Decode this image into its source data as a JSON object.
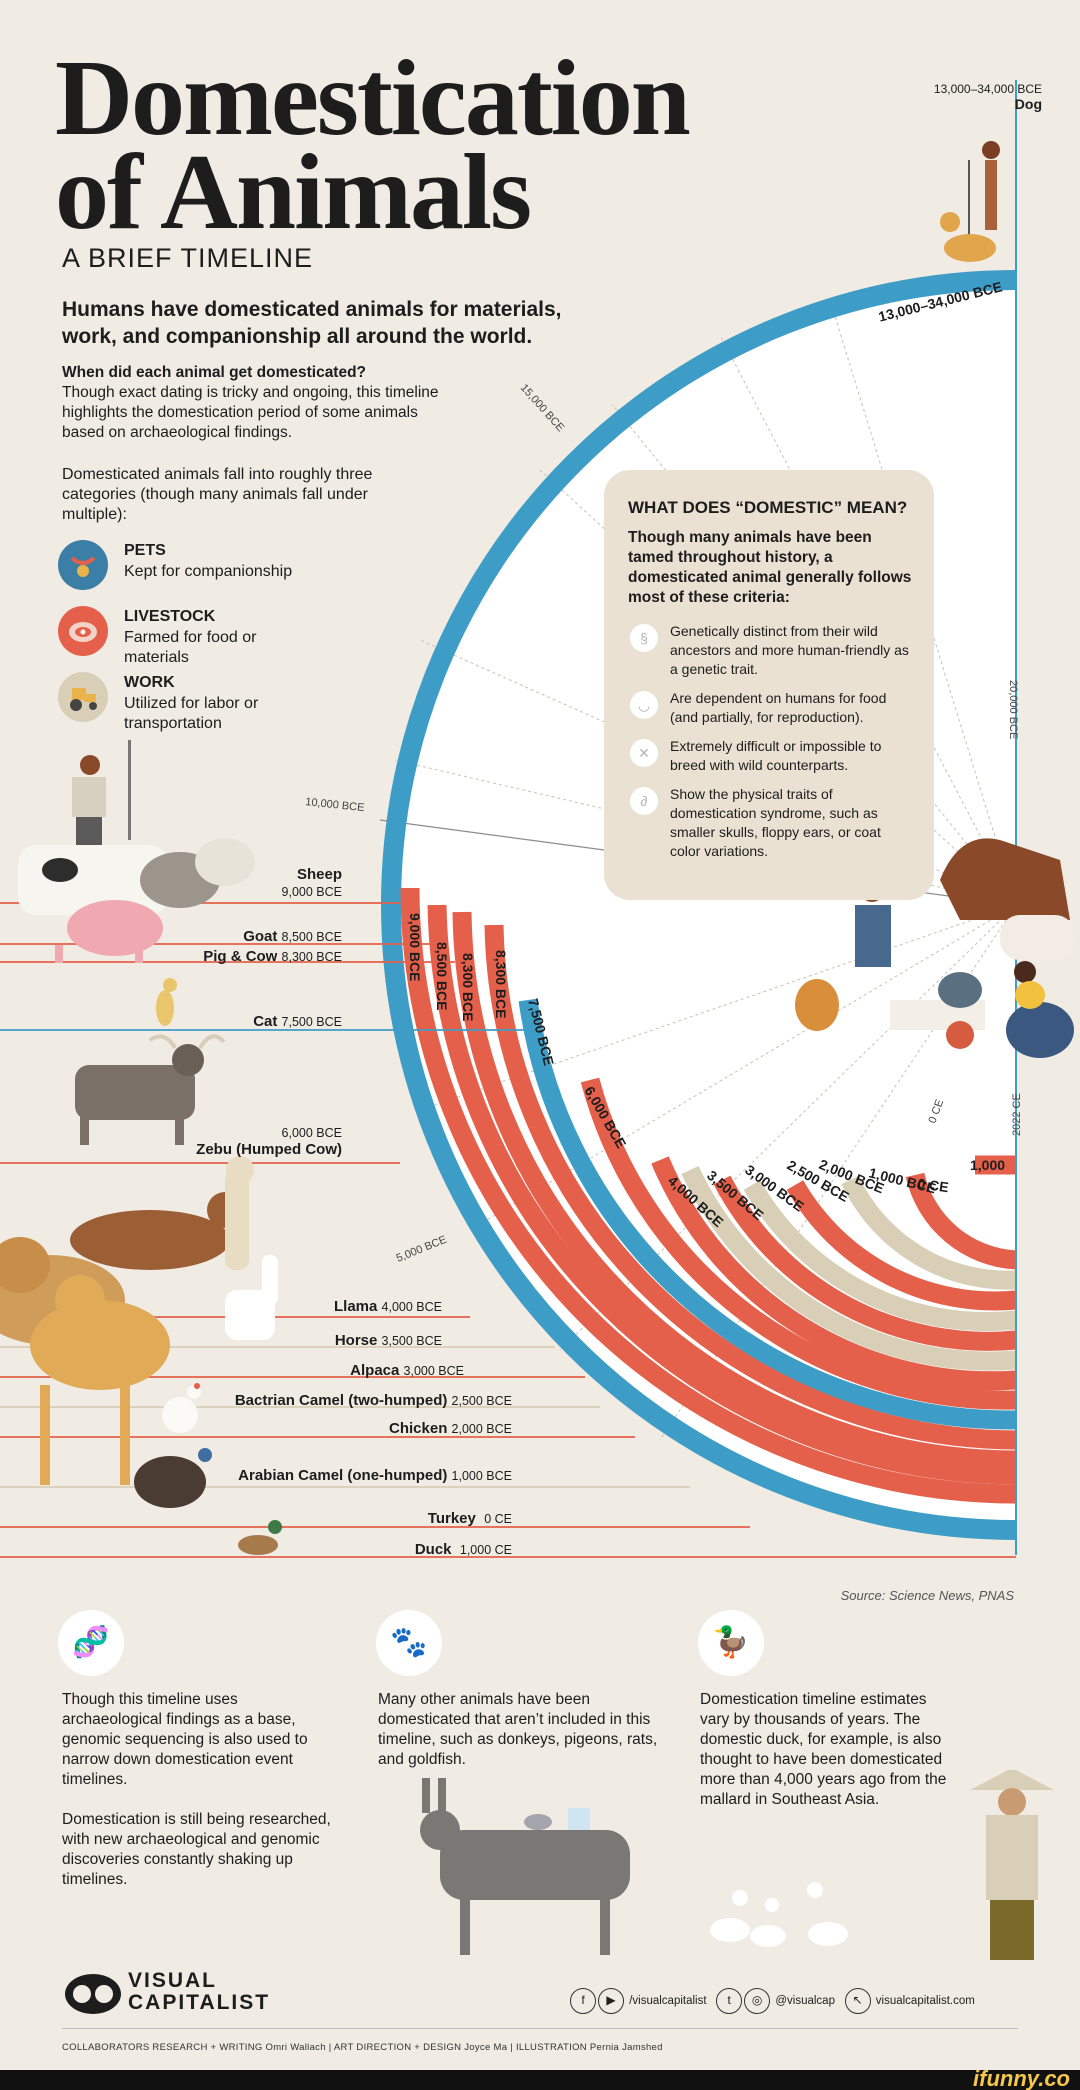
{
  "title_line1": "Domestication",
  "title_line2": "of Animals",
  "subtitle": "A BRIEF TIMELINE",
  "lead": "Humans have domesticated animals for materials, work, and companionship all around the world.",
  "question": "When did each animal get domesticated?",
  "question_body": "Though exact dating is tricky and ongoing, this timeline highlights the domestication period of some animals based on archaeological findings.",
  "categories_intro": "Domesticated animals fall into roughly three categories (though many animals fall under multiple):",
  "categories": [
    {
      "name": "PETS",
      "desc": "Kept for companionship",
      "color": "#3b7fa6"
    },
    {
      "name": "LIVESTOCK",
      "desc": "Farmed for food or materials",
      "color": "#e4604a"
    },
    {
      "name": "WORK",
      "desc": "Utilized for labor or transportation",
      "color": "#d9cfb6"
    }
  ],
  "dog": {
    "date": "13,000–34,000 BCE",
    "name": "Dog",
    "arc_label": "13,000–34,000 BCE"
  },
  "axis_labels": {
    "a15000": "15,000 BCE",
    "a20000": "20,000 BCE",
    "a10000": "10,000 BCE",
    "a5000": "5,000 BCE",
    "a0": "0 CE",
    "a2022": "2022 CE"
  },
  "domestic_box": {
    "heading": "WHAT DOES “DOMESTIC” MEAN?",
    "intro": "Though many animals have been tamed throughout history, a domesticated animal generally follows most of these criteria:",
    "criteria": [
      "Genetically distinct from their wild ancestors and more human-friendly as a genetic trait.",
      "Are dependent on humans for food (and partially, for reproduction).",
      "Extremely difficult or impossible to breed with wild counterparts.",
      "Show the physical traits of domestication syndrome, such as smaller skulls, floppy ears, or coat color variations."
    ]
  },
  "animals": [
    {
      "name": "Sheep",
      "date": "9,000 BCE",
      "arc": "9,000 BCE"
    },
    {
      "name": "Goat",
      "date": "8,500 BCE",
      "arc": "8,500 BCE"
    },
    {
      "name": "Pig & Cow",
      "date": "8,300 BCE",
      "arc": "8,300 BCE"
    },
    {
      "name": "Cat",
      "date": "7,500 BCE",
      "arc": "7,500 BCE"
    },
    {
      "name": "Zebu (Humped Cow)",
      "date": "6,000 BCE",
      "arc": "6,000 BCE"
    },
    {
      "name": "Llama",
      "date": "4,000 BCE",
      "arc": "4,000 BCE"
    },
    {
      "name": "Horse",
      "date": "3,500 BCE",
      "arc": "3,500 BCE"
    },
    {
      "name": "Alpaca",
      "date": "3,000 BCE",
      "arc": "3,000 BCE"
    },
    {
      "name": "Bactrian Camel (two-humped)",
      "date": "2,500 BCE",
      "arc": "2,500 BCE"
    },
    {
      "name": "Chicken",
      "date": "2,000 BCE",
      "arc": "2,000 BCE"
    },
    {
      "name": "Arabian Camel (one-humped)",
      "date": "1,000 BCE",
      "arc": "1,000 BCE"
    },
    {
      "name": "Turkey",
      "date": "0 CE",
      "arc": "0 CE"
    },
    {
      "name": "Duck",
      "date": "1,000 CE",
      "arc": "1,000"
    }
  ],
  "source": "Source: Science News, PNAS",
  "footer": {
    "col1_p1": "Though this timeline uses archaeological findings as a base, genomic sequencing is also used to narrow down domestication event timelines.",
    "col1_p2": "Domestication is still being researched, with new archaeological and genomic discoveries constantly shaking up timelines.",
    "col2": "Many other animals have been domesticated that aren’t included in this timeline, such as donkeys, pigeons, rats, and goldfish.",
    "col3": "Domestication timeline estimates vary by thousands of years. The domestic duck, for example, is also thought to have been domesticated more than 4,000 years ago from the mallard in Southeast Asia."
  },
  "brand_line1": "VISUAL",
  "brand_line2": "CAPITALIST",
  "social": {
    "handle1": "/visualcapitalist",
    "handle2": "@visualcap",
    "site": "visualcapitalist.com"
  },
  "credits": "COLLABORATORS   RESEARCH + WRITING Omri Wallach  |  ART DIRECTION + DESIGN Joyce Ma  |  ILLUSTRATION Pernia Jamshed",
  "watermark": "ifunny.co"
}
